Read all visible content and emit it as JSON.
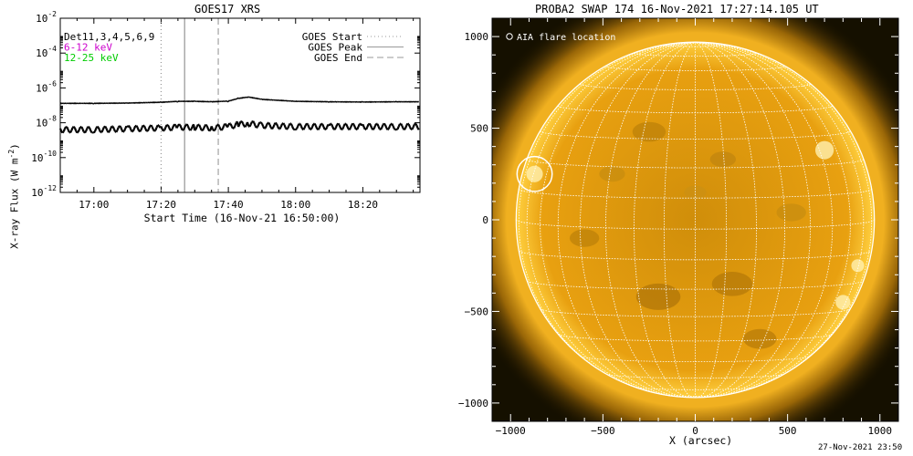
{
  "chart_data": [
    {
      "type": "line",
      "title": "GOES17 XRS",
      "xlabel": "Start Time (16-Nov-21 16:50:00)",
      "ylabel": "X-ray Flux (W m",
      "ylabel_sup": "-2",
      "ylabel_close": ")",
      "y_scale": "log",
      "ylim": [
        1e-12,
        0.01
      ],
      "y_ticks": [
        {
          "value": 0.01,
          "base": "10",
          "exp": "-2"
        },
        {
          "value": 0.0001,
          "base": "10",
          "exp": "-4"
        },
        {
          "value": 1e-06,
          "base": "10",
          "exp": "-6"
        },
        {
          "value": 1e-08,
          "base": "10",
          "exp": "-8"
        },
        {
          "value": 1e-10,
          "base": "10",
          "exp": "-10"
        },
        {
          "value": 1e-12,
          "base": "10",
          "exp": "-12"
        }
      ],
      "xlim": [
        "16:50",
        "18:37"
      ],
      "x_ticks": [
        "17:00",
        "17:20",
        "17:40",
        "18:00",
        "18:20"
      ],
      "legend_left": {
        "entries": [
          {
            "label": "Det11,3,4,5,6,9",
            "color": "#000000"
          },
          {
            "label": "6-12 keV",
            "color": "#cc00cc"
          },
          {
            "label": "12-25 keV",
            "color": "#00cc00"
          }
        ]
      },
      "legend_right": {
        "placement": "top-right",
        "entries": [
          {
            "label": "GOES Start",
            "style": "dotted"
          },
          {
            "label": "GOES Peak",
            "style": "solid"
          },
          {
            "label": "GOES End",
            "style": "dashed"
          }
        ]
      },
      "markers": [
        {
          "name": "GOES Start",
          "x": "17:20",
          "style": "dotted"
        },
        {
          "name": "GOES Peak",
          "x": "17:27",
          "style": "solid"
        },
        {
          "name": "GOES End",
          "x": "17:37",
          "style": "dashed"
        }
      ],
      "series": [
        {
          "x": [
            "16:50",
            "17:00",
            "17:10",
            "17:20",
            "17:25",
            "17:30",
            "17:35",
            "17:40",
            "17:43",
            "17:46",
            "17:50",
            "18:00",
            "18:10",
            "18:20",
            "18:30",
            "18:37"
          ],
          "values": [
            1.3e-07,
            1.3e-07,
            1.35e-07,
            1.5e-07,
            1.7e-07,
            1.7e-07,
            1.6e-07,
            1.75e-07,
            2.5e-07,
            3e-07,
            2.2e-07,
            1.7e-07,
            1.6e-07,
            1.55e-07,
            1.6e-07,
            1.6e-07
          ]
        },
        {
          "x": [
            "16:50",
            "17:00",
            "17:10",
            "17:20",
            "17:25",
            "17:30",
            "17:35",
            "17:40",
            "17:43",
            "17:46",
            "17:50",
            "18:00",
            "18:10",
            "18:20",
            "18:30",
            "18:37"
          ],
          "values": [
            4e-09,
            4e-09,
            4.5e-09,
            5e-09,
            5.5e-09,
            5.5e-09,
            5e-09,
            6e-09,
            8e-09,
            9e-09,
            7e-09,
            6e-09,
            6e-09,
            6e-09,
            6e-09,
            6e-09
          ]
        }
      ]
    },
    {
      "type": "image",
      "title": "PROBA2 SWAP 174 16-Nov-2021 17:27:14.105 UT",
      "xlabel": "X (arcsec)",
      "xlim": [
        -1100,
        1100
      ],
      "ylim": [
        -1100,
        1100
      ],
      "x_ticks": [
        -1000,
        -500,
        0,
        500,
        1000
      ],
      "y_ticks": [
        1000,
        500,
        0,
        -500,
        -1000
      ],
      "solar_radius": 970,
      "grid": true,
      "grid_step_deg": 10,
      "b0_deg": 3,
      "legend": {
        "label": "AIA flare location",
        "placement": "top-left"
      },
      "flare_location": {
        "x": -870,
        "y": 250,
        "r": 95
      },
      "colors": {
        "sun_disk": "#e8a010",
        "background": "#151000",
        "grid": "#ffffff"
      }
    }
  ],
  "footer": {
    "timestamp": "27-Nov-2021 23:50"
  }
}
